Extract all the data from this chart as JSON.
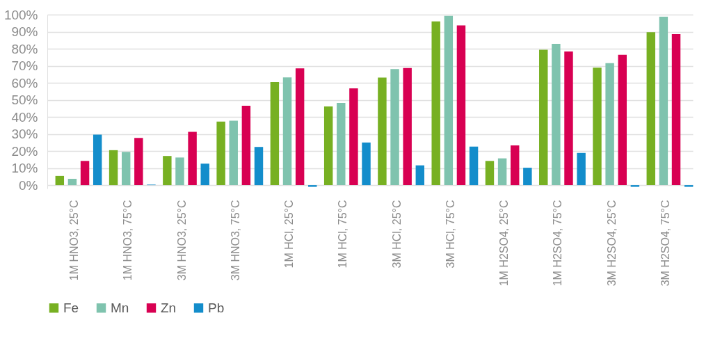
{
  "chart_data": {
    "type": "bar",
    "categories": [
      "1M HNO3, 25°C",
      "1M HNO3, 75°C",
      "3M HNO3, 25°C",
      "3M HNO3, 75°C",
      "1M HCl, 25°C",
      "1M HCl, 75°C",
      "3M HCl, 25°C",
      "3M HCl, 75°C",
      "1M H2SO4, 25°C",
      "1M H2SO4, 75°C",
      "3M H2SO4, 25°C",
      "3M H2SO4, 75°C"
    ],
    "series": [
      {
        "name": "Fe",
        "color": "#77b022",
        "values": [
          5.4,
          20.5,
          17.1,
          37.3,
          60.4,
          46.1,
          63.1,
          96.0,
          14.2,
          79.4,
          68.9,
          89.7
        ]
      },
      {
        "name": "Mn",
        "color": "#7fc3ae",
        "values": [
          3.7,
          19.5,
          16.2,
          37.8,
          63.2,
          48.2,
          68.1,
          99.3,
          15.7,
          82.9,
          71.5,
          98.8
        ]
      },
      {
        "name": "Zn",
        "color": "#d80052",
        "values": [
          14.2,
          27.7,
          31.3,
          46.6,
          68.5,
          56.8,
          68.7,
          93.7,
          23.3,
          78.4,
          76.4,
          88.6
        ]
      },
      {
        "name": "Pb",
        "color": "#138dcb",
        "values": [
          29.6,
          0.3,
          12.6,
          22.4,
          -1,
          25.0,
          11.6,
          22.6,
          10.2,
          18.9,
          -1,
          -1
        ]
      }
    ],
    "ylim": [
      -2,
      100
    ],
    "yticks": [
      {
        "value": 0,
        "label": "0%"
      },
      {
        "value": 10,
        "label": "10%"
      },
      {
        "value": 20,
        "label": "20%"
      },
      {
        "value": 30,
        "label": "30%"
      },
      {
        "value": 40,
        "label": "40%"
      },
      {
        "value": 50,
        "label": "50%"
      },
      {
        "value": 60,
        "label": "60%"
      },
      {
        "value": 70,
        "label": "70%"
      },
      {
        "value": 80,
        "label": "80%"
      },
      {
        "value": 90,
        "label": "90%"
      },
      {
        "value": 100,
        "label": "100%"
      }
    ],
    "grid": "y",
    "legend": "bottom"
  }
}
